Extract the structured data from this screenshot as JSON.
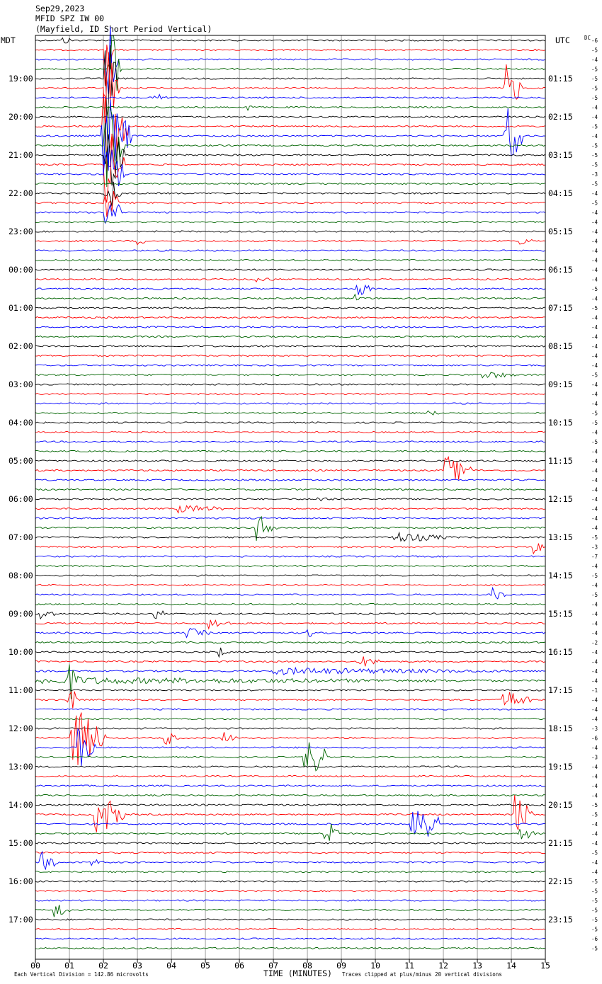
{
  "header": {
    "date": "Sep29,2023",
    "station": "MFID SPZ IW 00",
    "location": "(Mayfield, ID Short Period Vertical)"
  },
  "left_tz": "MDT",
  "right_tz": "UTC",
  "dc_label": "DC",
  "footer": {
    "left": "Each Vertical Division =  142.86 microvolts",
    "center": "TIME (MINUTES)",
    "right": "Traces clipped at plus/minus 20 vertical divisions"
  },
  "chart_data": {
    "type": "line",
    "title": "Sep29,2023 MFID SPZ IW 00 (Mayfield, ID Short Period Vertical)",
    "xlabel": "TIME (MINUTES)",
    "ylabel": "",
    "xlim": [
      0,
      15
    ],
    "x_ticks": [
      "00",
      "01",
      "02",
      "03",
      "04",
      "05",
      "06",
      "07",
      "08",
      "09",
      "10",
      "11",
      "12",
      "13",
      "14",
      "15"
    ],
    "trace_colors": [
      "#000000",
      "#ff0000",
      "#0000ff",
      "#006400"
    ],
    "traces_per_hour": 4,
    "trace_count": 96,
    "left_hour_labels": [
      "19:00",
      "20:00",
      "21:00",
      "22:00",
      "23:00",
      "00:00",
      "01:00",
      "02:00",
      "03:00",
      "04:00",
      "05:00",
      "06:00",
      "07:00",
      "08:00",
      "09:00",
      "10:00",
      "11:00",
      "12:00",
      "13:00",
      "14:00",
      "15:00",
      "16:00",
      "17:00"
    ],
    "right_hour_labels": [
      "01:15",
      "02:15",
      "03:15",
      "04:15",
      "05:15",
      "06:15",
      "07:15",
      "08:15",
      "09:15",
      "10:15",
      "11:15",
      "12:15",
      "13:15",
      "14:15",
      "15:15",
      "16:15",
      "17:15",
      "18:15",
      "19:15",
      "20:15",
      "21:15",
      "22:15",
      "23:15"
    ],
    "dc_values": [
      -6,
      -5,
      -4,
      -5,
      -5,
      -5,
      -5,
      -4,
      -4,
      -5,
      -4,
      -5,
      -5,
      -5,
      -3,
      -5,
      -4,
      -5,
      -4,
      -4,
      -4,
      -4,
      -4,
      -4,
      -4,
      -4,
      -5,
      -4,
      -5,
      -4,
      -4,
      -4,
      -4,
      -4,
      -4,
      -5,
      -4,
      -4,
      -4,
      -5,
      -5,
      -4,
      -5,
      -4,
      -4,
      -4,
      -4,
      -4,
      -4,
      -4,
      -4,
      -4,
      -5,
      -3,
      -7,
      -4,
      -5,
      -4,
      -5,
      -4,
      -4,
      -4,
      -4,
      -2,
      -4,
      -4,
      -4,
      -4,
      -1,
      -4,
      -4,
      -4,
      -3,
      -6,
      -4,
      -3,
      -4,
      -4,
      -4,
      -4,
      -5,
      -5,
      -4,
      -4,
      -4,
      -5,
      -4,
      -4,
      -5,
      -5,
      -5,
      -5,
      -5,
      -5,
      -6,
      -5
    ],
    "events": [
      {
        "row": 0,
        "t": 0.85,
        "amp": 6,
        "dur": 0.3
      },
      {
        "row": 1,
        "t": 2.1,
        "amp": 60,
        "dur": 0.15
      },
      {
        "row": 2,
        "t": 2.15,
        "amp": 70,
        "dur": 0.25
      },
      {
        "row": 3,
        "t": 2.2,
        "amp": 70,
        "dur": 0.3
      },
      {
        "row": 4,
        "t": 2.1,
        "amp": 70,
        "dur": 0.3
      },
      {
        "row": 5,
        "t": 2.1,
        "amp": 70,
        "dur": 0.35
      },
      {
        "row": 6,
        "t": 3.5,
        "amp": 6,
        "dur": 0.6
      },
      {
        "row": 7,
        "t": 6.2,
        "amp": 6,
        "dur": 0.3
      },
      {
        "row": 5,
        "t": 13.85,
        "amp": 35,
        "dur": 0.5
      },
      {
        "row": 9,
        "t": 2.0,
        "amp": 70,
        "dur": 0.7
      },
      {
        "row": 10,
        "t": 2.0,
        "amp": 70,
        "dur": 0.8
      },
      {
        "row": 10,
        "t": 13.85,
        "amp": 45,
        "dur": 0.5
      },
      {
        "row": 11,
        "t": 2.1,
        "amp": 70,
        "dur": 0.5
      },
      {
        "row": 12,
        "t": 2.1,
        "amp": 60,
        "dur": 0.5
      },
      {
        "row": 13,
        "t": 2.1,
        "amp": 60,
        "dur": 0.5
      },
      {
        "row": 14,
        "t": 2.1,
        "amp": 50,
        "dur": 0.5
      },
      {
        "row": 16,
        "t": 2.1,
        "amp": 30,
        "dur": 0.4
      },
      {
        "row": 17,
        "t": 2.1,
        "amp": 30,
        "dur": 0.4
      },
      {
        "row": 18,
        "t": 2.1,
        "amp": 40,
        "dur": 0.4
      },
      {
        "row": 21,
        "t": 3.0,
        "amp": 6,
        "dur": 0.3
      },
      {
        "row": 21,
        "t": 14.3,
        "amp": 5,
        "dur": 0.5
      },
      {
        "row": 25,
        "t": 6.5,
        "amp": 4,
        "dur": 0.8
      },
      {
        "row": 26,
        "t": 9.5,
        "amp": 10,
        "dur": 0.5
      },
      {
        "row": 27,
        "t": 9.4,
        "amp": 6,
        "dur": 0.3
      },
      {
        "row": 35,
        "t": 13.2,
        "amp": 6,
        "dur": 1.0
      },
      {
        "row": 39,
        "t": 11.6,
        "amp": 4,
        "dur": 0.4
      },
      {
        "row": 45,
        "t": 12.1,
        "amp": 20,
        "dur": 0.8
      },
      {
        "row": 48,
        "t": 8.3,
        "amp": 5,
        "dur": 0.6
      },
      {
        "row": 49,
        "t": 4.2,
        "amp": 6,
        "dur": 1.6
      },
      {
        "row": 51,
        "t": 6.5,
        "amp": 20,
        "dur": 0.6
      },
      {
        "row": 52,
        "t": 10.5,
        "amp": 8,
        "dur": 1.8
      },
      {
        "row": 53,
        "t": 14.7,
        "amp": 10,
        "dur": 0.3
      },
      {
        "row": 58,
        "t": 13.4,
        "amp": 10,
        "dur": 0.5
      },
      {
        "row": 60,
        "t": 0.2,
        "amp": 8,
        "dur": 0.5
      },
      {
        "row": 60,
        "t": 3.5,
        "amp": 8,
        "dur": 0.4
      },
      {
        "row": 61,
        "t": 5.1,
        "amp": 8,
        "dur": 0.7
      },
      {
        "row": 62,
        "t": 4.4,
        "amp": 8,
        "dur": 0.8
      },
      {
        "row": 62,
        "t": 8.0,
        "amp": 6,
        "dur": 0.7
      },
      {
        "row": 64,
        "t": 5.4,
        "amp": 8,
        "dur": 0.3
      },
      {
        "row": 65,
        "t": 9.6,
        "amp": 8,
        "dur": 0.6
      },
      {
        "row": 66,
        "t": 7.0,
        "amp": 5,
        "dur": 8.0
      },
      {
        "row": 67,
        "t": 0.0,
        "amp": 5,
        "dur": 15.0
      },
      {
        "row": 67,
        "t": 1.0,
        "amp": 30,
        "dur": 0.3
      },
      {
        "row": 69,
        "t": 13.8,
        "amp": 15,
        "dur": 0.8
      },
      {
        "row": 69,
        "t": 1.0,
        "amp": 20,
        "dur": 0.3
      },
      {
        "row": 73,
        "t": 1.1,
        "amp": 45,
        "dur": 1.0
      },
      {
        "row": 73,
        "t": 3.8,
        "amp": 12,
        "dur": 0.4
      },
      {
        "row": 73,
        "t": 5.5,
        "amp": 10,
        "dur": 0.4
      },
      {
        "row": 74,
        "t": 1.3,
        "amp": 30,
        "dur": 0.5
      },
      {
        "row": 75,
        "t": 7.9,
        "amp": 30,
        "dur": 0.8
      },
      {
        "row": 81,
        "t": 1.8,
        "amp": 35,
        "dur": 0.8
      },
      {
        "row": 81,
        "t": 14.1,
        "amp": 30,
        "dur": 0.6
      },
      {
        "row": 82,
        "t": 11.1,
        "amp": 40,
        "dur": 0.8
      },
      {
        "row": 83,
        "t": 8.5,
        "amp": 30,
        "dur": 0.4
      },
      {
        "row": 83,
        "t": 14.3,
        "amp": 10,
        "dur": 0.5
      },
      {
        "row": 86,
        "t": 0.2,
        "amp": 15,
        "dur": 0.5
      },
      {
        "row": 86,
        "t": 1.7,
        "amp": 5,
        "dur": 0.4
      },
      {
        "row": 91,
        "t": 0.6,
        "amp": 12,
        "dur": 0.5
      }
    ]
  }
}
